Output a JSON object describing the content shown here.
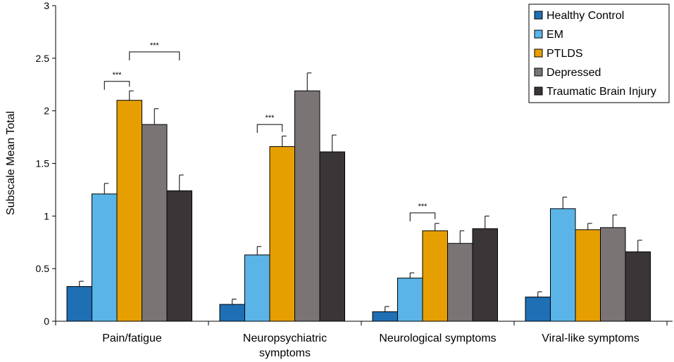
{
  "chart_data": {
    "type": "bar",
    "title": "",
    "xlabel": "",
    "ylabel": "Subscale Mean Total",
    "ylim": [
      0,
      3
    ],
    "yticks": [
      "0",
      "0.5",
      "1",
      "1.5",
      "2",
      "2.5",
      "3"
    ],
    "grid": false,
    "legend_position": "top-right",
    "categories": [
      [
        "Pain/fatigue"
      ],
      [
        "Neuropsychiatric",
        "symptoms"
      ],
      [
        "Neurological symptoms"
      ],
      [
        "Viral-like symptoms"
      ]
    ],
    "series": [
      {
        "name": "Healthy Control",
        "color": "#1f6fb4",
        "values": [
          0.33,
          0.16,
          0.09,
          0.23
        ],
        "errors": [
          0.05,
          0.05,
          0.05,
          0.05
        ]
      },
      {
        "name": "EM",
        "color": "#5ab4e8",
        "values": [
          1.21,
          0.63,
          0.41,
          1.07
        ],
        "errors": [
          0.1,
          0.08,
          0.05,
          0.11
        ]
      },
      {
        "name": "PTLDS",
        "color": "#e69f00",
        "values": [
          2.1,
          1.66,
          0.86,
          0.87
        ],
        "errors": [
          0.09,
          0.1,
          0.07,
          0.06
        ]
      },
      {
        "name": "Depressed",
        "color": "#7a7474",
        "values": [
          1.87,
          2.19,
          0.74,
          0.89
        ],
        "errors": [
          0.15,
          0.17,
          0.12,
          0.12
        ]
      },
      {
        "name": "Traumatic Brain Injury",
        "color": "#3a3638",
        "values": [
          1.24,
          1.61,
          0.88,
          0.66
        ],
        "errors": [
          0.15,
          0.16,
          0.12,
          0.11
        ]
      }
    ],
    "significance": [
      {
        "category": 0,
        "from_series": 1,
        "to_series": 2,
        "bracket_level": 2.28,
        "label": "***"
      },
      {
        "category": 0,
        "from_series": 2,
        "to_series": 4,
        "bracket_level": 2.56,
        "label": "***"
      },
      {
        "category": 1,
        "from_series": 1,
        "to_series": 2,
        "bracket_level": 1.87,
        "label": "***"
      },
      {
        "category": 2,
        "from_series": 1,
        "to_series": 2,
        "bracket_level": 1.03,
        "label": "***"
      }
    ]
  }
}
